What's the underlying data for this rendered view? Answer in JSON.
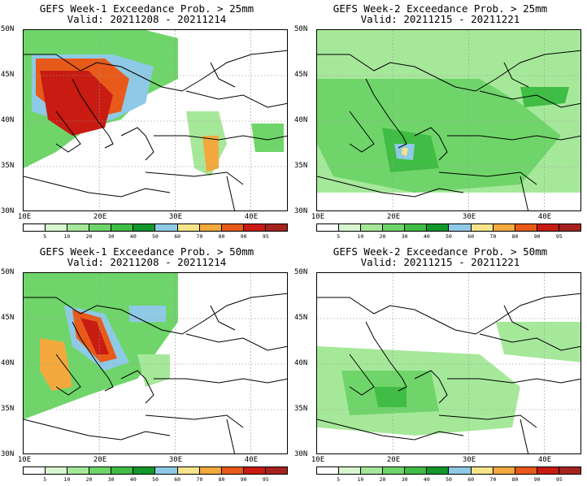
{
  "panels": [
    {
      "title": "GEFS Week-1 Exceedance Prob. > 25mm",
      "valid": "Valid: 20211208 - 20211214",
      "intensity": "w1_25"
    },
    {
      "title": "GEFS Week-2 Exceedance Prob. > 25mm",
      "valid": "Valid: 20211215 - 20211221",
      "intensity": "w2_25"
    },
    {
      "title": "GEFS Week-1 Exceedance Prob. > 50mm",
      "valid": "Valid: 20211208 - 20211214",
      "intensity": "w1_50"
    },
    {
      "title": "GEFS Week-2 Exceedance Prob. > 50mm",
      "valid": "Valid: 20211215 - 20211221",
      "intensity": "w2_50"
    }
  ],
  "lat_labels": [
    "50N",
    "45N",
    "40N",
    "35N",
    "30N"
  ],
  "lon_labels": [
    "10E",
    "20E",
    "30E",
    "40E"
  ],
  "colorbar": {
    "labels": [
      "5",
      "10",
      "20",
      "30",
      "40",
      "50",
      "60",
      "70",
      "80",
      "90",
      "95"
    ],
    "colors": [
      "#ffffff",
      "#d8f6d0",
      "#a6e89a",
      "#6fd56a",
      "#3fbd44",
      "#11972b",
      "#8ecae6",
      "#f6e48a",
      "#f3a93d",
      "#e85a1a",
      "#c81b12",
      "#a5231f"
    ]
  }
}
